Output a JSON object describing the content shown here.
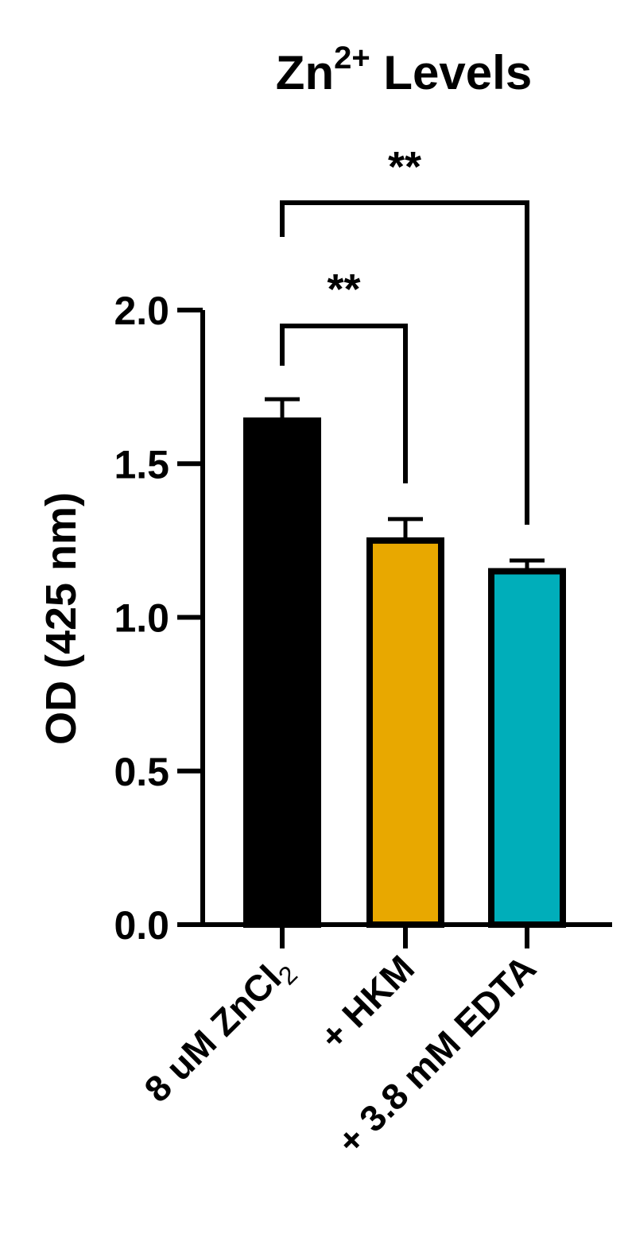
{
  "chart_data": {
    "type": "bar",
    "title_main": "Zn",
    "title_sup": "2+",
    "title_rest": " Levels",
    "ylabel": "OD (425 nm)",
    "ylim": [
      0,
      2.0
    ],
    "yticks": [
      "0.0",
      "0.5",
      "1.0",
      "1.5",
      "2.0"
    ],
    "ytick_values": [
      0,
      0.5,
      1.0,
      1.5,
      2.0
    ],
    "categories": [
      {
        "main": "8 uM ZnCl",
        "sub": "2"
      },
      {
        "main": "+ HKM",
        "sub": ""
      },
      {
        "main": "+ 3.8 mM EDTA",
        "sub": ""
      }
    ],
    "values": [
      1.64,
      1.25,
      1.15
    ],
    "errors": [
      0.07,
      0.07,
      0.035
    ],
    "colors": [
      "#000000",
      "#E8A800",
      "#00AEBA"
    ],
    "significance": [
      {
        "from": 0,
        "to": 1,
        "label": "**"
      },
      {
        "from": 0,
        "to": 2,
        "label": "**"
      }
    ]
  }
}
